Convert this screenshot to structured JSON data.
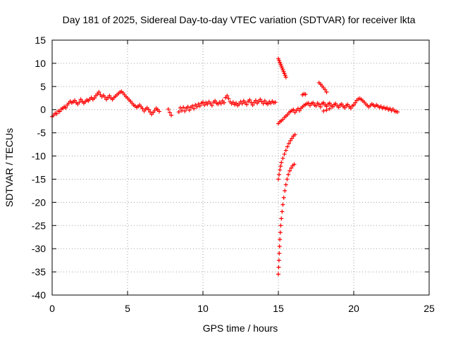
{
  "chart_data": {
    "type": "scatter",
    "title": "Day 181 of 2025, Sidereal Day-to-day VTEC variation (SDTVAR) for receiver lkta",
    "xlabel": "GPS time / hours",
    "ylabel": "SDTVAR / TECUs",
    "xlim": [
      0,
      25
    ],
    "ylim": [
      -40,
      15
    ],
    "xticks": [
      "0",
      "5",
      "10",
      "15",
      "20",
      "25"
    ],
    "yticks": [
      "15",
      "10",
      "5",
      "0",
      "-5",
      "-10",
      "-15",
      "-20",
      "-25",
      "-30",
      "-35",
      "-40"
    ],
    "grid": true,
    "marker": "plus",
    "color": "#ff0000",
    "series": [
      {
        "name": "main",
        "points": [
          [
            0.0,
            -1.5
          ],
          [
            0.1,
            -1.2
          ],
          [
            0.2,
            -0.8
          ],
          [
            0.3,
            -0.9
          ],
          [
            0.4,
            -0.3
          ],
          [
            0.5,
            -0.4
          ],
          [
            0.6,
            0.1
          ],
          [
            0.7,
            0.3
          ],
          [
            0.8,
            0.6
          ],
          [
            0.9,
            0.4
          ],
          [
            1.0,
            1.0
          ],
          [
            1.1,
            1.4
          ],
          [
            1.2,
            1.8
          ],
          [
            1.3,
            1.5
          ],
          [
            1.4,
            1.7
          ],
          [
            1.5,
            2.0
          ],
          [
            1.6,
            1.5
          ],
          [
            1.7,
            1.2
          ],
          [
            1.8,
            1.6
          ],
          [
            1.9,
            2.2
          ],
          [
            2.0,
            1.8
          ],
          [
            2.1,
            1.4
          ],
          [
            2.2,
            1.7
          ],
          [
            2.3,
            2.1
          ],
          [
            2.4,
            1.9
          ],
          [
            2.5,
            2.3
          ],
          [
            2.6,
            2.6
          ],
          [
            2.7,
            2.2
          ],
          [
            2.8,
            2.5
          ],
          [
            2.9,
            3.0
          ],
          [
            3.0,
            3.4
          ],
          [
            3.1,
            3.8
          ],
          [
            3.2,
            3.2
          ],
          [
            3.3,
            2.8
          ],
          [
            3.4,
            3.1
          ],
          [
            3.5,
            2.7
          ],
          [
            3.6,
            2.2
          ],
          [
            3.7,
            2.6
          ],
          [
            3.8,
            3.0
          ],
          [
            3.9,
            2.5
          ],
          [
            4.0,
            2.2
          ],
          [
            4.1,
            2.6
          ],
          [
            4.2,
            2.9
          ],
          [
            4.3,
            3.2
          ],
          [
            4.4,
            3.5
          ],
          [
            4.5,
            3.8
          ],
          [
            4.6,
            3.9
          ],
          [
            4.7,
            3.6
          ],
          [
            4.8,
            3.2
          ],
          [
            4.9,
            2.8
          ],
          [
            5.0,
            2.5
          ],
          [
            5.1,
            2.1
          ],
          [
            5.2,
            1.8
          ],
          [
            5.3,
            1.4
          ],
          [
            5.4,
            1.0
          ],
          [
            5.5,
            0.8
          ],
          [
            5.6,
            0.5
          ],
          [
            5.7,
            0.7
          ],
          [
            5.8,
            1.0
          ],
          [
            5.9,
            0.6
          ],
          [
            6.0,
            0.2
          ],
          [
            6.1,
            -0.3
          ],
          [
            6.2,
            0.1
          ],
          [
            6.3,
            0.4
          ],
          [
            6.4,
            0.0
          ],
          [
            6.5,
            -0.5
          ],
          [
            6.6,
            -1.0
          ],
          [
            6.7,
            -0.6
          ],
          [
            6.8,
            -0.2
          ],
          [
            6.9,
            0.3
          ],
          [
            7.0,
            0.0
          ],
          [
            7.1,
            -0.4
          ],
          [
            7.7,
            0.1
          ],
          [
            7.8,
            -0.6
          ],
          [
            7.9,
            -1.2
          ],
          [
            8.4,
            -0.5
          ],
          [
            8.5,
            0.4
          ],
          [
            8.6,
            -0.2
          ],
          [
            8.7,
            0.5
          ],
          [
            8.8,
            -0.3
          ],
          [
            8.9,
            0.3
          ],
          [
            9.0,
            0.6
          ],
          [
            9.1,
            -0.1
          ],
          [
            9.2,
            0.5
          ],
          [
            9.3,
            0.8
          ],
          [
            9.4,
            0.2
          ],
          [
            9.5,
            1.0
          ],
          [
            9.6,
            0.6
          ],
          [
            9.7,
            1.2
          ],
          [
            9.8,
            0.8
          ],
          [
            9.9,
            1.4
          ],
          [
            10.0,
            1.6
          ],
          [
            10.1,
            1.0
          ],
          [
            10.2,
            1.5
          ],
          [
            10.3,
            1.2
          ],
          [
            10.4,
            1.7
          ],
          [
            10.5,
            1.3
          ],
          [
            10.6,
            0.9
          ],
          [
            10.7,
            1.6
          ],
          [
            10.8,
            1.9
          ],
          [
            10.9,
            1.4
          ],
          [
            11.0,
            1.2
          ],
          [
            11.1,
            1.6
          ],
          [
            11.2,
            1.3
          ],
          [
            11.3,
            1.9
          ],
          [
            11.4,
            1.5
          ],
          [
            11.5,
            2.6
          ],
          [
            11.6,
            3.0
          ],
          [
            11.7,
            2.4
          ],
          [
            11.8,
            1.7
          ],
          [
            11.9,
            1.3
          ],
          [
            12.0,
            1.6
          ],
          [
            12.1,
            1.1
          ],
          [
            12.2,
            1.4
          ],
          [
            12.3,
            0.9
          ],
          [
            12.4,
            1.2
          ],
          [
            12.5,
            1.7
          ],
          [
            12.6,
            1.3
          ],
          [
            12.7,
            1.9
          ],
          [
            12.8,
            1.5
          ],
          [
            12.9,
            1.1
          ],
          [
            13.0,
            1.8
          ],
          [
            13.1,
            2.1
          ],
          [
            13.2,
            1.5
          ],
          [
            13.3,
            1.0
          ],
          [
            13.4,
            1.6
          ],
          [
            13.5,
            2.0
          ],
          [
            13.6,
            1.4
          ],
          [
            13.7,
            1.8
          ],
          [
            13.8,
            2.2
          ],
          [
            13.9,
            1.7
          ],
          [
            14.0,
            1.3
          ],
          [
            14.1,
            1.9
          ],
          [
            14.2,
            1.4
          ],
          [
            14.3,
            1.2
          ],
          [
            14.4,
            1.7
          ],
          [
            14.5,
            1.4
          ],
          [
            14.6,
            1.8
          ],
          [
            14.7,
            1.5
          ],
          [
            14.8,
            1.6
          ]
        ]
      },
      {
        "name": "post-15h",
        "points": [
          [
            15.0,
            -3.0
          ],
          [
            15.1,
            -2.6
          ],
          [
            15.2,
            -2.4
          ],
          [
            15.3,
            -2.1
          ],
          [
            15.4,
            -1.7
          ],
          [
            15.5,
            -1.4
          ],
          [
            15.6,
            -1.1
          ],
          [
            15.7,
            -0.7
          ],
          [
            15.8,
            -0.4
          ],
          [
            15.9,
            -0.2
          ],
          [
            16.0,
            0.0
          ],
          [
            16.1,
            -0.6
          ],
          [
            16.2,
            -0.2
          ],
          [
            16.3,
            0.2
          ],
          [
            16.4,
            -0.2
          ],
          [
            16.5,
            0.3
          ],
          [
            16.6,
            0.6
          ],
          [
            16.7,
            0.9
          ],
          [
            16.8,
            1.1
          ],
          [
            16.9,
            1.3
          ],
          [
            17.0,
            1.4
          ],
          [
            17.1,
            0.9
          ],
          [
            17.2,
            1.3
          ],
          [
            17.3,
            1.5
          ],
          [
            17.4,
            1.0
          ],
          [
            17.5,
            0.8
          ],
          [
            17.6,
            1.4
          ],
          [
            17.7,
            1.1
          ],
          [
            17.8,
            0.6
          ],
          [
            17.9,
            1.3
          ],
          [
            18.0,
            1.5
          ],
          [
            18.1,
            1.0
          ],
          [
            18.2,
            0.7
          ],
          [
            18.3,
            1.2
          ],
          [
            18.4,
            1.4
          ],
          [
            18.5,
            0.9
          ],
          [
            18.6,
            0.6
          ],
          [
            18.7,
            1.1
          ],
          [
            18.8,
            1.3
          ],
          [
            18.9,
            0.8
          ],
          [
            19.0,
            0.5
          ],
          [
            19.1,
            1.0
          ],
          [
            19.2,
            1.2
          ],
          [
            19.3,
            0.7
          ],
          [
            19.4,
            0.4
          ],
          [
            19.5,
            0.9
          ],
          [
            19.6,
            1.1
          ],
          [
            19.7,
            0.6
          ],
          [
            19.8,
            0.3
          ],
          [
            19.9,
            0.8
          ],
          [
            20.0,
            1.0
          ],
          [
            20.1,
            1.5
          ],
          [
            20.2,
            2.0
          ],
          [
            20.3,
            2.3
          ],
          [
            20.4,
            2.4
          ],
          [
            20.5,
            2.2
          ],
          [
            20.6,
            1.9
          ],
          [
            20.7,
            1.6
          ],
          [
            20.8,
            1.2
          ],
          [
            20.9,
            0.9
          ],
          [
            21.0,
            0.6
          ],
          [
            21.1,
            0.9
          ],
          [
            21.2,
            1.2
          ],
          [
            21.3,
            1.0
          ],
          [
            21.4,
            0.7
          ],
          [
            21.5,
            1.0
          ],
          [
            21.6,
            0.8
          ],
          [
            21.7,
            0.5
          ],
          [
            21.8,
            0.7
          ],
          [
            21.9,
            0.3
          ],
          [
            22.0,
            0.5
          ],
          [
            22.1,
            0.2
          ],
          [
            22.2,
            0.4
          ],
          [
            22.3,
            0.0
          ],
          [
            22.4,
            0.2
          ],
          [
            22.5,
            -0.2
          ],
          [
            22.6,
            0.1
          ],
          [
            22.7,
            -0.3
          ],
          [
            22.8,
            -0.4
          ],
          [
            22.9,
            -0.5
          ],
          [
            16.6,
            3.2
          ],
          [
            16.7,
            3.4
          ],
          [
            16.8,
            3.3
          ],
          [
            17.7,
            5.8
          ],
          [
            17.8,
            5.5
          ],
          [
            17.9,
            5.1
          ],
          [
            18.0,
            4.7
          ],
          [
            18.1,
            4.3
          ],
          [
            18.2,
            3.8
          ],
          [
            18.0,
            -0.3
          ],
          [
            18.2,
            -0.1
          ],
          [
            18.4,
            0.2
          ]
        ]
      },
      {
        "name": "descending-arc",
        "points": [
          [
            15.0,
            11.0
          ],
          [
            15.05,
            10.6
          ],
          [
            15.1,
            10.2
          ],
          [
            15.15,
            9.8
          ],
          [
            15.2,
            9.4
          ],
          [
            15.25,
            9.0
          ],
          [
            15.3,
            8.6
          ],
          [
            15.35,
            8.2
          ],
          [
            15.4,
            7.8
          ],
          [
            15.45,
            7.4
          ],
          [
            15.5,
            7.0
          ]
        ]
      },
      {
        "name": "dip-arc-1",
        "points": [
          [
            15.0,
            -15.0
          ],
          [
            15.05,
            -14.0
          ],
          [
            15.1,
            -13.0
          ],
          [
            15.15,
            -12.2
          ],
          [
            15.2,
            -11.4
          ],
          [
            15.3,
            -10.5
          ],
          [
            15.4,
            -9.6
          ],
          [
            15.5,
            -8.8
          ],
          [
            15.6,
            -8.0
          ],
          [
            15.7,
            -7.3
          ],
          [
            15.8,
            -6.7
          ],
          [
            15.9,
            -6.2
          ],
          [
            16.0,
            -5.7
          ],
          [
            16.1,
            -5.4
          ]
        ]
      },
      {
        "name": "dip-arc-2",
        "points": [
          [
            15.0,
            -35.5
          ],
          [
            15.02,
            -34.0
          ],
          [
            15.04,
            -32.5
          ],
          [
            15.06,
            -31.0
          ],
          [
            15.08,
            -29.5
          ],
          [
            15.1,
            -28.0
          ],
          [
            15.13,
            -26.5
          ],
          [
            15.16,
            -25.0
          ],
          [
            15.2,
            -23.5
          ],
          [
            15.25,
            -22.0
          ],
          [
            15.3,
            -20.5
          ],
          [
            15.36,
            -19.0
          ],
          [
            15.43,
            -17.5
          ],
          [
            15.5,
            -16.2
          ],
          [
            15.58,
            -15.0
          ],
          [
            15.66,
            -14.0
          ],
          [
            15.75,
            -13.2
          ],
          [
            15.85,
            -12.6
          ],
          [
            15.95,
            -12.1
          ],
          [
            16.05,
            -11.8
          ]
        ]
      }
    ]
  }
}
